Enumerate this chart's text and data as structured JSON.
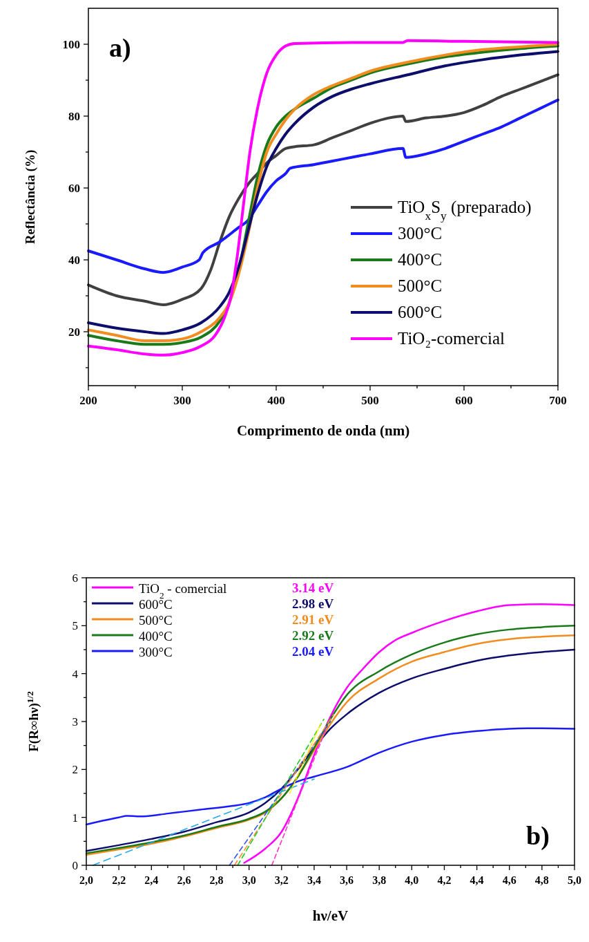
{
  "chart_data": [
    {
      "type": "line",
      "xlabel": "Comprimento de onda (nm)",
      "ylabel": "Reflectância (%)",
      "xlim": [
        200,
        700
      ],
      "ylim": [
        5,
        110
      ],
      "xticks": [
        200,
        {
          "value": 250,
          "label": null
        },
        300,
        {
          "value": 350,
          "label": null
        },
        400,
        {
          "value": 450,
          "label": null
        },
        500,
        {
          "value": 550,
          "label": null
        },
        600,
        {
          "value": 650,
          "label": null
        },
        700
      ],
      "yticks": [
        {
          "value": 10,
          "label": null
        },
        20,
        {
          "value": 30,
          "label": null
        },
        40,
        {
          "value": 50,
          "label": null
        },
        60,
        {
          "value": 70,
          "label": null
        },
        80,
        {
          "value": 90,
          "label": null
        },
        100
      ],
      "legend": "bottom right",
      "grid": false,
      "annotations": [
        "a)"
      ],
      "series": [
        {
          "name": "TiO$_{x}$S$_{y}$ (preparado)",
          "color": "#404040",
          "x": [
            200,
            230,
            260,
            280,
            300,
            320,
            330,
            340,
            350,
            360,
            370,
            380,
            390,
            400,
            410,
            420,
            440,
            460,
            480,
            500,
            520,
            535,
            538,
            560,
            580,
            600,
            620,
            640,
            660,
            680,
            700
          ],
          "values": [
            33,
            30,
            28.5,
            27.5,
            29,
            32,
            37,
            45,
            52,
            57,
            61,
            64,
            67,
            69,
            71,
            71.5,
            72,
            74,
            76,
            78,
            79.5,
            80,
            78.5,
            79.5,
            80,
            81,
            83,
            85.5,
            87.5,
            89.5,
            91.5
          ]
        },
        {
          "name": "300°C",
          "color": "#1a1aff",
          "x": [
            200,
            230,
            260,
            280,
            300,
            318,
            322,
            340,
            360,
            370,
            380,
            390,
            400,
            410,
            415,
            440,
            460,
            480,
            500,
            535,
            538,
            560,
            580,
            600,
            620,
            640,
            660,
            680,
            700
          ],
          "values": [
            42.5,
            40,
            37.5,
            36.5,
            38,
            40,
            42,
            45,
            49,
            51,
            55,
            59,
            62,
            64,
            65.5,
            66.5,
            67.5,
            68.5,
            69.5,
            71,
            68.5,
            69.5,
            71,
            73,
            75,
            77,
            79.5,
            82,
            84.5
          ]
        },
        {
          "name": "400°C",
          "color": "#1a7a1a",
          "x": [
            200,
            230,
            260,
            280,
            300,
            320,
            340,
            350,
            360,
            370,
            380,
            390,
            400,
            410,
            420,
            440,
            460,
            480,
            500,
            540,
            580,
            620,
            660,
            700
          ],
          "values": [
            19,
            17.5,
            16.5,
            16.5,
            17,
            18.5,
            23,
            28,
            37,
            50,
            63,
            72,
            77,
            80,
            82,
            85,
            88,
            90,
            92,
            94.5,
            96.5,
            97.8,
            98.8,
            99.5
          ]
        },
        {
          "name": "500°C",
          "color": "#f28c1e",
          "x": [
            200,
            230,
            260,
            280,
            300,
            320,
            340,
            350,
            360,
            370,
            380,
            390,
            400,
            410,
            420,
            440,
            460,
            480,
            500,
            540,
            580,
            620,
            660,
            700
          ],
          "values": [
            20.5,
            19,
            17.5,
            17.5,
            18,
            20,
            24,
            28,
            36,
            47,
            60,
            70,
            75,
            79,
            82,
            86,
            88.5,
            90.5,
            92.5,
            95,
            97,
            98.5,
            99.3,
            100
          ]
        },
        {
          "name": "600°C",
          "color": "#0d0d6b",
          "x": [
            200,
            230,
            260,
            280,
            300,
            320,
            340,
            350,
            360,
            370,
            380,
            390,
            400,
            410,
            420,
            440,
            460,
            480,
            500,
            540,
            580,
            620,
            660,
            700
          ],
          "values": [
            22.5,
            21,
            20,
            19.5,
            20.5,
            22.5,
            27,
            31,
            38,
            48,
            58,
            66,
            71,
            75,
            78,
            82.5,
            85.5,
            87.5,
            89,
            91.5,
            94,
            95.7,
            97,
            98
          ]
        },
        {
          "name": "TiO₂-comercial",
          "color": "#ff00ff",
          "x": [
            200,
            230,
            260,
            280,
            300,
            320,
            335,
            345,
            352,
            358,
            365,
            372,
            380,
            390,
            400,
            410,
            420,
            500,
            535,
            540,
            600,
            700
          ],
          "values": [
            16,
            15,
            13.8,
            13.5,
            14.2,
            16,
            19,
            24,
            30,
            40,
            55,
            70,
            82,
            92,
            97,
            99.5,
            100.2,
            100.5,
            100.5,
            101,
            100.8,
            100.5
          ]
        }
      ]
    },
    {
      "type": "line",
      "xlabel": "hν/eV",
      "ylabel": "F(R∞hν)$^{1/2}$",
      "xlim": [
        2,
        5
      ],
      "ylim": [
        0,
        6
      ],
      "xticks": [
        {
          "value": 2,
          "label": "2,0"
        },
        {
          "value": 2.1,
          "label": null
        },
        {
          "value": 2.2,
          "label": "2,2"
        },
        {
          "value": 2.3,
          "label": null
        },
        {
          "value": 2.4,
          "label": "2,4"
        },
        {
          "value": 2.5,
          "label": null
        },
        {
          "value": 2.6,
          "label": "2,6"
        },
        {
          "value": 2.7,
          "label": null
        },
        {
          "value": 2.8,
          "label": "2,8"
        },
        {
          "value": 2.9,
          "label": null
        },
        {
          "value": 3,
          "label": "3,0"
        },
        {
          "value": 3.1,
          "label": null
        },
        {
          "value": 3.2,
          "label": "3,2"
        },
        {
          "value": 3.3,
          "label": null
        },
        {
          "value": 3.4,
          "label": "3,4"
        },
        {
          "value": 3.5,
          "label": null
        },
        {
          "value": 3.6,
          "label": "3,6"
        },
        {
          "value": 3.7,
          "label": null
        },
        {
          "value": 3.8,
          "label": "3,8"
        },
        {
          "value": 3.9,
          "label": null
        },
        {
          "value": 4,
          "label": "4,0"
        },
        {
          "value": 4.1,
          "label": null
        },
        {
          "value": 4.2,
          "label": "4,2"
        },
        {
          "value": 4.3,
          "label": null
        },
        {
          "value": 4.4,
          "label": "4,4"
        },
        {
          "value": 4.5,
          "label": null
        },
        {
          "value": 4.6,
          "label": "4,6"
        },
        {
          "value": 4.7,
          "label": null
        },
        {
          "value": 4.8,
          "label": "4,8"
        },
        {
          "value": 4.9,
          "label": null
        },
        {
          "value": 5,
          "label": "5,0"
        }
      ],
      "yticks": [
        0,
        {
          "value": 0.5,
          "label": null
        },
        1,
        {
          "value": 1.5,
          "label": null
        },
        2,
        {
          "value": 2.5,
          "label": null
        },
        3,
        {
          "value": 3.5,
          "label": null
        },
        4,
        {
          "value": 4.5,
          "label": null
        },
        5,
        {
          "value": 5.5,
          "label": null
        },
        6
      ],
      "legend": "top left",
      "grid": false,
      "annotations": [
        "3.14 eV",
        "2.98 eV",
        "2.91 eV",
        "2.92 eV",
        "2.04 eV",
        "b)"
      ],
      "series": [
        {
          "name": "TiO$_{2}$ - comercial",
          "color": "#ff00ff",
          "x": [
            2.97,
            3.1,
            3.2,
            3.3,
            3.4,
            3.5,
            3.6,
            3.7,
            3.8,
            3.9,
            4.0,
            4.2,
            4.4,
            4.6,
            4.8,
            5.0
          ],
          "values": [
            0.05,
            0.35,
            0.7,
            1.4,
            2.3,
            3.1,
            3.7,
            4.1,
            4.45,
            4.7,
            4.85,
            5.1,
            5.3,
            5.43,
            5.45,
            5.43
          ]
        },
        {
          "name": "600°C",
          "color": "#0d0d6b",
          "x": [
            2.0,
            2.2,
            2.4,
            2.6,
            2.8,
            3.0,
            3.1,
            3.2,
            3.3,
            3.4,
            3.5,
            3.6,
            3.8,
            4.0,
            4.2,
            4.4,
            4.6,
            4.8,
            5.0
          ],
          "values": [
            0.3,
            0.42,
            0.55,
            0.7,
            0.9,
            1.1,
            1.3,
            1.6,
            2.0,
            2.45,
            2.85,
            3.15,
            3.6,
            3.9,
            4.1,
            4.27,
            4.38,
            4.45,
            4.5
          ]
        },
        {
          "name": "500°C",
          "color": "#f28c1e",
          "x": [
            2.0,
            2.2,
            2.4,
            2.6,
            2.8,
            3.0,
            3.1,
            3.2,
            3.3,
            3.4,
            3.5,
            3.6,
            3.8,
            4.0,
            4.2,
            4.4,
            4.6,
            4.8,
            5.0
          ],
          "values": [
            0.22,
            0.33,
            0.45,
            0.6,
            0.78,
            0.95,
            1.1,
            1.4,
            1.85,
            2.4,
            2.95,
            3.4,
            3.9,
            4.25,
            4.45,
            4.62,
            4.72,
            4.77,
            4.8
          ]
        },
        {
          "name": "400°C",
          "color": "#1a7a1a",
          "x": [
            2.0,
            2.2,
            2.4,
            2.6,
            2.8,
            3.0,
            3.1,
            3.2,
            3.3,
            3.4,
            3.5,
            3.6,
            3.8,
            4.0,
            4.2,
            4.4,
            4.6,
            4.8,
            5.0
          ],
          "values": [
            0.25,
            0.36,
            0.48,
            0.62,
            0.8,
            0.97,
            1.12,
            1.4,
            1.85,
            2.45,
            3.05,
            3.55,
            4.05,
            4.4,
            4.65,
            4.82,
            4.92,
            4.97,
            5.0
          ]
        },
        {
          "name": "300°C",
          "color": "#1a1aff",
          "x": [
            2.0,
            2.1,
            2.2,
            2.25,
            2.35,
            2.5,
            2.7,
            2.9,
            3.0,
            3.1,
            3.2,
            3.3,
            3.4,
            3.6,
            3.8,
            4.0,
            4.2,
            4.4,
            4.6,
            4.8,
            5.0
          ],
          "values": [
            0.85,
            0.93,
            1.0,
            1.03,
            1.02,
            1.08,
            1.16,
            1.24,
            1.3,
            1.42,
            1.6,
            1.75,
            1.85,
            2.05,
            2.35,
            2.58,
            2.72,
            2.8,
            2.85,
            2.86,
            2.85
          ]
        },
        {
          "color": "#ff33cc",
          "line_style": "dashed",
          "x": [
            3.14,
            3.48
          ],
          "values": [
            0,
            2.9
          ]
        },
        {
          "color": "#3355ee",
          "line_style": "dashed",
          "x": [
            2.88,
            3.5
          ],
          "values": [
            0,
            3.0
          ]
        },
        {
          "color": "#ff8c33",
          "line_style": "dashed",
          "x": [
            2.91,
            3.52
          ],
          "values": [
            0,
            3.15
          ]
        },
        {
          "color": "#22cc22",
          "line_style": "dashed",
          "x": [
            2.93,
            3.46
          ],
          "values": [
            0,
            3.05
          ]
        },
        {
          "color": "#22aaee",
          "line_style": "dashed",
          "x": [
            2.04,
            3.4
          ],
          "values": [
            0,
            1.8
          ]
        },
        {
          "color": "#ffee00",
          "line_style": "dashed",
          "x": [
            3.25,
            3.44
          ],
          "values": [
            1.5,
            2.95
          ]
        }
      ]
    }
  ]
}
